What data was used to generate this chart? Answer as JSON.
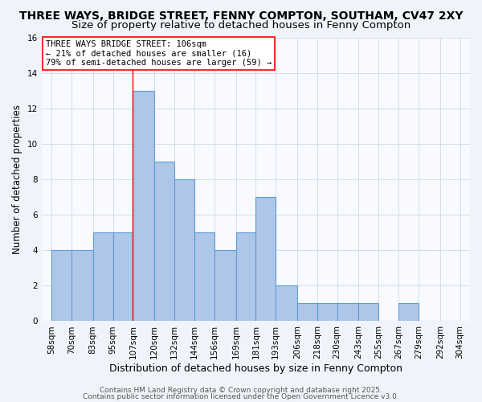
{
  "title_line1": "THREE WAYS, BRIDGE STREET, FENNY COMPTON, SOUTHAM, CV47 2XY",
  "title_line2": "Size of property relative to detached houses in Fenny Compton",
  "xlabel": "Distribution of detached houses by size in Fenny Compton",
  "ylabel": "Number of detached properties",
  "bin_edges": [
    58,
    70,
    83,
    95,
    107,
    120,
    132,
    144,
    156,
    169,
    181,
    193,
    206,
    218,
    230,
    243,
    255,
    267,
    279,
    292,
    304
  ],
  "bar_heights": [
    4,
    4,
    5,
    5,
    13,
    9,
    8,
    5,
    4,
    5,
    7,
    2,
    1,
    1,
    1,
    1,
    0,
    1,
    0,
    0
  ],
  "bar_color": "#aec6e8",
  "bar_edgecolor": "#5a9fd4",
  "bar_linewidth": 0.8,
  "red_line_x": 107,
  "ylim": [
    0,
    16
  ],
  "yticks": [
    0,
    2,
    4,
    6,
    8,
    10,
    12,
    14,
    16
  ],
  "annotation_text_line1": "THREE WAYS BRIDGE STREET: 106sqm",
  "annotation_text_line2": "← 21% of detached houses are smaller (16)",
  "annotation_text_line3": "79% of semi-detached houses are larger (59) →",
  "annotation_fontsize": 7.5,
  "title_fontsize1": 10,
  "title_fontsize2": 9.5,
  "xlabel_fontsize": 9,
  "ylabel_fontsize": 8.5,
  "footer_line1": "Contains HM Land Registry data © Crown copyright and database right 2025.",
  "footer_line2": "Contains public sector information licensed under the Open Government Licence v3.0.",
  "footer_fontsize": 6.5,
  "bg_color": "#f0f4fa",
  "plot_bg_color": "#f8faff",
  "grid_color": "#d0d8e8",
  "tick_label_fontsize": 7.5
}
